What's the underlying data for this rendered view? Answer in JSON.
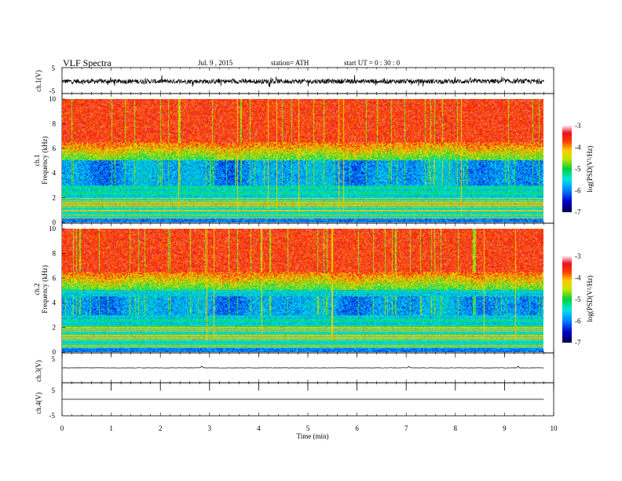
{
  "header": {
    "title": "VLF  Spectra",
    "date": "Jul.  9  , 2015",
    "station": "station= ATH",
    "start": "start  UT  =   0  : 30 : 0"
  },
  "chart_data": [
    {
      "type": "line",
      "name": "ch1-waveform",
      "ylabel": "ch.1(V)",
      "ylim": [
        -5,
        5
      ],
      "ticks": [
        "5",
        "-5"
      ],
      "xlim": [
        0,
        10
      ],
      "level": -0.3,
      "noise": 0.9
    },
    {
      "type": "heatmap",
      "name": "ch1-spectrogram",
      "ylabel": "ch.1\nFrequency  (kHz)",
      "ylabel_lines": [
        "ch.1",
        "Frequency  (kHz)"
      ],
      "ylim": [
        0,
        10
      ],
      "yticks": [
        "0",
        "2",
        "4",
        "6",
        "8",
        "10"
      ],
      "xlim": [
        0,
        9.8
      ],
      "colorbar": {
        "label": "log(PSD(V²/Hz)",
        "range": [
          -7,
          -3
        ],
        "ticks": [
          "-3",
          "-4",
          "-5",
          "-6",
          "-7"
        ]
      },
      "quiet_band_khz": [
        3,
        5
      ]
    },
    {
      "type": "heatmap",
      "name": "ch2-spectrogram",
      "ylabel": "ch.2\nFrequency  (kHz)",
      "ylabel_lines": [
        "ch.2",
        "Frequency  (kHz)"
      ],
      "ylim": [
        0,
        10
      ],
      "yticks": [
        "0",
        "2",
        "4",
        "6",
        "8",
        "10"
      ],
      "xlim": [
        0,
        9.8
      ],
      "colorbar": {
        "label": "log(PSD(V²/Hz)",
        "range": [
          -7,
          -3
        ],
        "ticks": [
          "-3",
          "-4",
          "-5",
          "-6",
          "-7"
        ]
      },
      "quiet_band_khz": [
        3,
        4.5
      ]
    },
    {
      "type": "line",
      "name": "ch3-waveform",
      "ylabel": "ch.3(V)",
      "ylim": [
        -5,
        5
      ],
      "ticks": [
        "5"
      ],
      "level": 0,
      "noise": 0.05
    },
    {
      "type": "line",
      "name": "ch4-waveform",
      "ylabel": "ch.4(V)",
      "ylim": [
        -5,
        5
      ],
      "ticks": [
        "5",
        "-5"
      ],
      "level": 0,
      "noise": 0
    }
  ],
  "xaxis": {
    "label": "Time  (min)",
    "ticks": [
      "0",
      "1",
      "2",
      "3",
      "4",
      "5",
      "6",
      "7",
      "8",
      "9",
      "10"
    ],
    "range": [
      0,
      10
    ]
  }
}
